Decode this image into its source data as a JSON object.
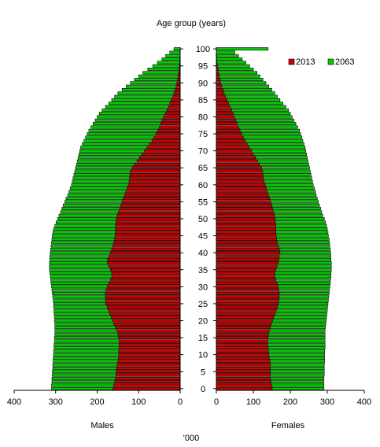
{
  "chart_data": {
    "type": "bar",
    "orientation": "horizontal",
    "layout": "population-pyramid",
    "title": "Age group (years)",
    "x_unit": "'000",
    "panels": [
      "Males",
      "Females"
    ],
    "xlim": [
      0,
      400
    ],
    "x_ticks": [
      "400",
      "300",
      "200",
      "100",
      "0",
      "0",
      "100",
      "200",
      "300",
      "400"
    ],
    "age_ticks": [
      "100",
      "95",
      "90",
      "85",
      "80",
      "75",
      "70",
      "65",
      "60",
      "55",
      "50",
      "45",
      "40",
      "35",
      "30",
      "25",
      "20",
      "15",
      "10",
      "5",
      "0"
    ],
    "ages": [
      0,
      1,
      2,
      3,
      4,
      5,
      6,
      7,
      8,
      9,
      10,
      11,
      12,
      13,
      14,
      15,
      16,
      17,
      18,
      19,
      20,
      21,
      22,
      23,
      24,
      25,
      26,
      27,
      28,
      29,
      30,
      31,
      32,
      33,
      34,
      35,
      36,
      37,
      38,
      39,
      40,
      41,
      42,
      43,
      44,
      45,
      46,
      47,
      48,
      49,
      50,
      51,
      52,
      53,
      54,
      55,
      56,
      57,
      58,
      59,
      60,
      61,
      62,
      63,
      64,
      65,
      66,
      67,
      68,
      69,
      70,
      71,
      72,
      73,
      74,
      75,
      76,
      77,
      78,
      79,
      80,
      81,
      82,
      83,
      84,
      85,
      86,
      87,
      88,
      89,
      90,
      91,
      92,
      93,
      94,
      95,
      96,
      97,
      98,
      99,
      100
    ],
    "legend_position": "top-right",
    "series": [
      {
        "name": "2013",
        "color": "#cc0000",
        "males": [
          162,
          160,
          158,
          156,
          155,
          154,
          153,
          152,
          150,
          149,
          148,
          148,
          147,
          147,
          147,
          148,
          150,
          152,
          156,
          160,
          163,
          166,
          170,
          173,
          176,
          179,
          180,
          180,
          180,
          179,
          176,
          172,
          168,
          165,
          165,
          168,
          172,
          175,
          175,
          172,
          168,
          165,
          163,
          160,
          158,
          157,
          156,
          156,
          156,
          155,
          154,
          152,
          149,
          146,
          143,
          140,
          137,
          134,
          131,
          128,
          125,
          123,
          122,
          121,
          120,
          116,
          110,
          104,
          98,
          92,
          86,
          80,
          74,
          68,
          63,
          58,
          54,
          50,
          47,
          44,
          40,
          36,
          32,
          28,
          25,
          22,
          18,
          15,
          12,
          10,
          8,
          6,
          5,
          4,
          3,
          2,
          1,
          1,
          0,
          0,
          0
        ],
        "females": [
          151,
          150,
          148,
          146,
          146,
          146,
          146,
          146,
          145,
          143,
          142,
          141,
          140,
          139,
          139,
          140,
          141,
          143,
          146,
          149,
          152,
          155,
          159,
          162,
          165,
          167,
          169,
          170,
          170,
          169,
          167,
          164,
          161,
          158,
          158,
          161,
          164,
          167,
          169,
          170,
          172,
          170,
          168,
          165,
          163,
          162,
          161,
          161,
          161,
          160,
          159,
          157,
          155,
          152,
          150,
          147,
          144,
          141,
          138,
          135,
          132,
          129,
          127,
          126,
          125,
          122,
          117,
          112,
          106,
          100,
          95,
          89,
          83,
          78,
          73,
          68,
          64,
          60,
          56,
          53,
          49,
          45,
          41,
          37,
          33,
          29,
          25,
          21,
          18,
          15,
          12,
          10,
          8,
          6,
          5,
          3,
          2,
          1,
          1,
          0,
          0
        ]
      },
      {
        "name": "2063",
        "color": "#00cc00",
        "males": [
          310,
          310,
          309,
          309,
          308,
          308,
          307,
          307,
          306,
          306,
          305,
          305,
          304,
          304,
          303,
          303,
          302,
          302,
          302,
          302,
          303,
          303,
          304,
          304,
          305,
          305,
          306,
          307,
          308,
          309,
          310,
          311,
          312,
          313,
          314,
          315,
          315,
          315,
          314,
          314,
          313,
          312,
          311,
          310,
          309,
          308,
          307,
          305,
          302,
          299,
          295,
          292,
          288,
          285,
          282,
          278,
          275,
          271,
          268,
          265,
          262,
          260,
          258,
          256,
          254,
          252,
          250,
          248,
          246,
          244,
          242,
          240,
          236,
          232,
          228,
          224,
          220,
          215,
          210,
          205,
          200,
          195,
          188,
          180,
          172,
          165,
          158,
          150,
          140,
          130,
          120,
          110,
          100,
          90,
          78,
          66,
          55,
          44,
          35,
          25,
          15
        ],
        "females": [
          291,
          291,
          291,
          291,
          292,
          292,
          292,
          292,
          293,
          293,
          293,
          293,
          294,
          294,
          294,
          294,
          294,
          294,
          295,
          296,
          297,
          298,
          299,
          300,
          301,
          302,
          303,
          304,
          305,
          306,
          307,
          308,
          309,
          310,
          310,
          311,
          311,
          311,
          310,
          310,
          309,
          308,
          307,
          306,
          305,
          303,
          302,
          300,
          298,
          295,
          292,
          288,
          285,
          282,
          279,
          276,
          273,
          270,
          268,
          265,
          262,
          260,
          258,
          256,
          254,
          252,
          250,
          248,
          246,
          244,
          242,
          240,
          237,
          234,
          231,
          228,
          225,
          220,
          215,
          210,
          205,
          200,
          195,
          188,
          180,
          172,
          165,
          158,
          150,
          142,
          134,
          126,
          118,
          110,
          100,
          90,
          80,
          70,
          60,
          50,
          140
        ]
      }
    ]
  }
}
